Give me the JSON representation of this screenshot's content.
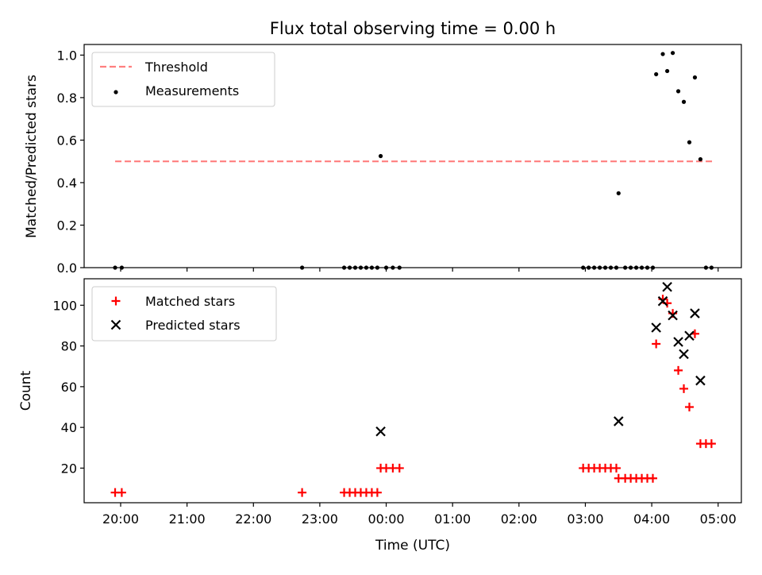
{
  "chart_data": {
    "type": "scatter",
    "title": "Flux total observing time = 0.00 h",
    "xlabel": "Time (UTC)",
    "x_ticks": [
      "20:00",
      "21:00",
      "22:00",
      "23:00",
      "00:00",
      "01:00",
      "02:00",
      "03:00",
      "04:00",
      "05:00"
    ],
    "xlim": [
      "19:27",
      "05:21"
    ],
    "panels": [
      {
        "id": "ratio",
        "ylabel": "Matched/Predicted stars",
        "ylim": [
          0,
          1.05
        ],
        "y_ticks": [
          0.0,
          0.2,
          0.4,
          0.6,
          0.8,
          1.0
        ],
        "grid": false,
        "legend_position": "upper-left",
        "threshold": {
          "name": "Threshold",
          "value": 0.5,
          "x_start": "19:55",
          "x_end": "04:55",
          "color": "#ff7f7f"
        },
        "series": [
          {
            "name": "Measurements",
            "marker": "dot",
            "color": "#000000",
            "points": [
              [
                "19:55",
                0.0
              ],
              [
                "20:01",
                0.0
              ],
              [
                "22:44",
                0.0
              ],
              [
                "23:22",
                0.0
              ],
              [
                "23:27",
                0.0
              ],
              [
                "23:32",
                0.0
              ],
              [
                "23:37",
                0.0
              ],
              [
                "23:42",
                0.0
              ],
              [
                "23:47",
                0.0
              ],
              [
                "23:52",
                0.0
              ],
              [
                "23:55",
                0.525
              ],
              [
                "00:00",
                0.0
              ],
              [
                "00:06",
                0.0
              ],
              [
                "00:12",
                0.0
              ],
              [
                "02:58",
                0.0
              ],
              [
                "03:03",
                0.0
              ],
              [
                "03:08",
                0.0
              ],
              [
                "03:13",
                0.0
              ],
              [
                "03:18",
                0.0
              ],
              [
                "03:23",
                0.0
              ],
              [
                "03:28",
                0.0
              ],
              [
                "03:30",
                0.35
              ],
              [
                "03:36",
                0.0
              ],
              [
                "03:41",
                0.0
              ],
              [
                "03:46",
                0.0
              ],
              [
                "03:51",
                0.0
              ],
              [
                "03:56",
                0.0
              ],
              [
                "04:01",
                0.0
              ],
              [
                "04:04",
                0.91
              ],
              [
                "04:10",
                1.005
              ],
              [
                "04:14",
                0.925
              ],
              [
                "04:19",
                1.01
              ],
              [
                "04:24",
                0.83
              ],
              [
                "04:29",
                0.78
              ],
              [
                "04:34",
                0.59
              ],
              [
                "04:39",
                0.895
              ],
              [
                "04:44",
                0.51
              ],
              [
                "04:49",
                0.0
              ],
              [
                "04:54",
                0.0
              ]
            ]
          }
        ]
      },
      {
        "id": "count",
        "ylabel": "Count",
        "ylim": [
          3,
          113
        ],
        "y_ticks": [
          20,
          40,
          60,
          80,
          100
        ],
        "grid": false,
        "legend_position": "upper-left",
        "series": [
          {
            "name": "Matched stars",
            "marker": "plus",
            "color": "#ff0000",
            "points": [
              [
                "19:55",
                8
              ],
              [
                "20:01",
                8
              ],
              [
                "22:44",
                8
              ],
              [
                "23:22",
                8
              ],
              [
                "23:27",
                8
              ],
              [
                "23:32",
                8
              ],
              [
                "23:37",
                8
              ],
              [
                "23:42",
                8
              ],
              [
                "23:47",
                8
              ],
              [
                "23:52",
                8
              ],
              [
                "23:55",
                20
              ],
              [
                "00:00",
                20
              ],
              [
                "00:06",
                20
              ],
              [
                "00:12",
                20
              ],
              [
                "02:58",
                20
              ],
              [
                "03:03",
                20
              ],
              [
                "03:08",
                20
              ],
              [
                "03:13",
                20
              ],
              [
                "03:18",
                20
              ],
              [
                "03:23",
                20
              ],
              [
                "03:28",
                20
              ],
              [
                "03:30",
                15
              ],
              [
                "03:36",
                15
              ],
              [
                "03:41",
                15
              ],
              [
                "03:46",
                15
              ],
              [
                "03:51",
                15
              ],
              [
                "03:56",
                15
              ],
              [
                "04:01",
                15
              ],
              [
                "04:04",
                81
              ],
              [
                "04:10",
                103
              ],
              [
                "04:14",
                101
              ],
              [
                "04:19",
                96
              ],
              [
                "04:24",
                68
              ],
              [
                "04:29",
                59
              ],
              [
                "04:34",
                50
              ],
              [
                "04:39",
                86
              ],
              [
                "04:44",
                32
              ],
              [
                "04:49",
                32
              ],
              [
                "04:54",
                32
              ]
            ]
          },
          {
            "name": "Predicted stars",
            "marker": "x",
            "color": "#000000",
            "points": [
              [
                "23:55",
                38
              ],
              [
                "03:30",
                43
              ],
              [
                "04:04",
                89
              ],
              [
                "04:10",
                102
              ],
              [
                "04:14",
                109
              ],
              [
                "04:19",
                95
              ],
              [
                "04:24",
                82
              ],
              [
                "04:29",
                76
              ],
              [
                "04:34",
                85
              ],
              [
                "04:39",
                96
              ],
              [
                "04:44",
                63
              ]
            ]
          }
        ]
      }
    ]
  }
}
